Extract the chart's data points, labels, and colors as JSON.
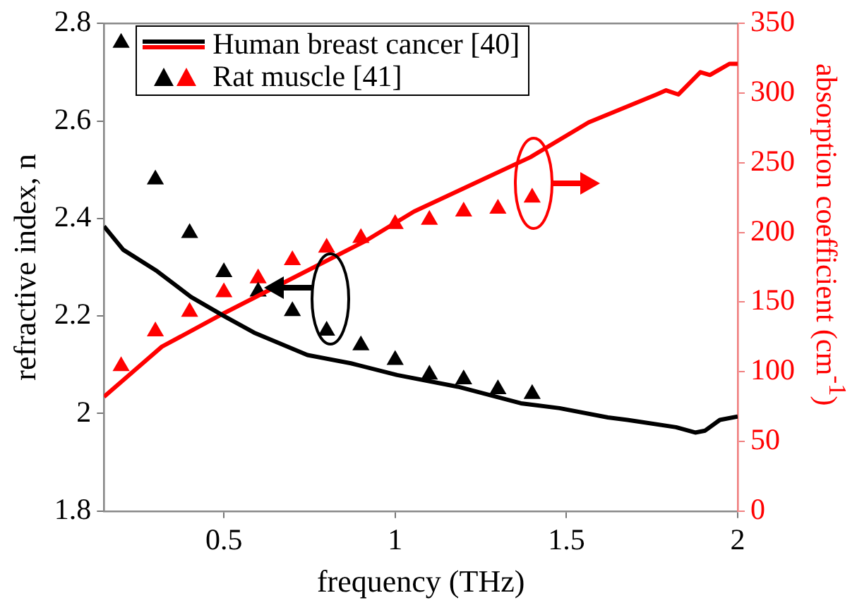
{
  "chart_data": {
    "type": "line",
    "xlabel": "frequency (THz)",
    "ylabel": "refractive index, n",
    "y2label": "absorption coefficient (cm$^{-1}$)",
    "xlim": [
      0.15,
      2
    ],
    "xticks": [
      0.5,
      1,
      1.5,
      2
    ],
    "ylim": [
      1.8,
      2.8
    ],
    "yticks": [
      1.8,
      2,
      2.2,
      2.4,
      2.6,
      2.8
    ],
    "y2lim": [
      0,
      350
    ],
    "y2ticks": [
      0,
      50,
      100,
      150,
      200,
      250,
      300,
      350
    ],
    "legend": "top left",
    "line_style": "solid",
    "series": [
      {
        "name": "Human breast cancer [40]",
        "type": "line",
        "marker": "none",
        "color": "#000000",
        "x": [
          0.15,
          0.206,
          0.305,
          0.404,
          0.5,
          0.588,
          0.744,
          0.871,
          1.006,
          1.183,
          1.367,
          1.48,
          1.621,
          1.678,
          1.82,
          1.876,
          1.905,
          1.948,
          2
        ],
        "values": [
          2.384,
          2.336,
          2.292,
          2.239,
          2.2,
          2.166,
          2.12,
          2.103,
          2.079,
          2.055,
          2.021,
          2.011,
          1.992,
          1.987,
          1.972,
          1.961,
          1.965,
          1.987,
          1.994
        ]
      },
      {
        "type": "line",
        "marker": "none",
        "color": "#ff0000",
        "axis": "y2",
        "x": [
          0.15,
          0.319,
          0.5,
          0.914,
          1.055,
          1.395,
          1.565,
          1.763,
          1.791,
          1.827,
          1.891,
          1.919,
          1.976,
          2
        ],
        "values": [
          82,
          118,
          142,
          194,
          215,
          254,
          279,
          299,
          302,
          299,
          315,
          313,
          321,
          321
        ]
      },
      {
        "name": "Rat muscle [41]",
        "type": "scatter",
        "marker": "triangle",
        "color": "#000000",
        "x": [
          0.2,
          0.3,
          0.4,
          0.5,
          0.6,
          0.7,
          0.8,
          0.9,
          1,
          1.1,
          1.2,
          1.3,
          1.4
        ],
        "values": [
          2.76,
          2.48,
          2.37,
          2.29,
          2.25,
          2.21,
          2.17,
          2.14,
          2.11,
          2.08,
          2.07,
          2.05,
          2.04
        ]
      },
      {
        "type": "scatter",
        "marker": "triangle",
        "color": "#ff0000",
        "axis": "y2",
        "x": [
          0.2,
          0.3,
          0.4,
          0.5,
          0.6,
          0.7,
          0.8,
          0.9,
          1,
          1.1,
          1.2,
          1.3,
          1.4
        ],
        "values": [
          104,
          129,
          143,
          157,
          167,
          180,
          189,
          196,
          206,
          209,
          215,
          217,
          225
        ]
      }
    ]
  }
}
